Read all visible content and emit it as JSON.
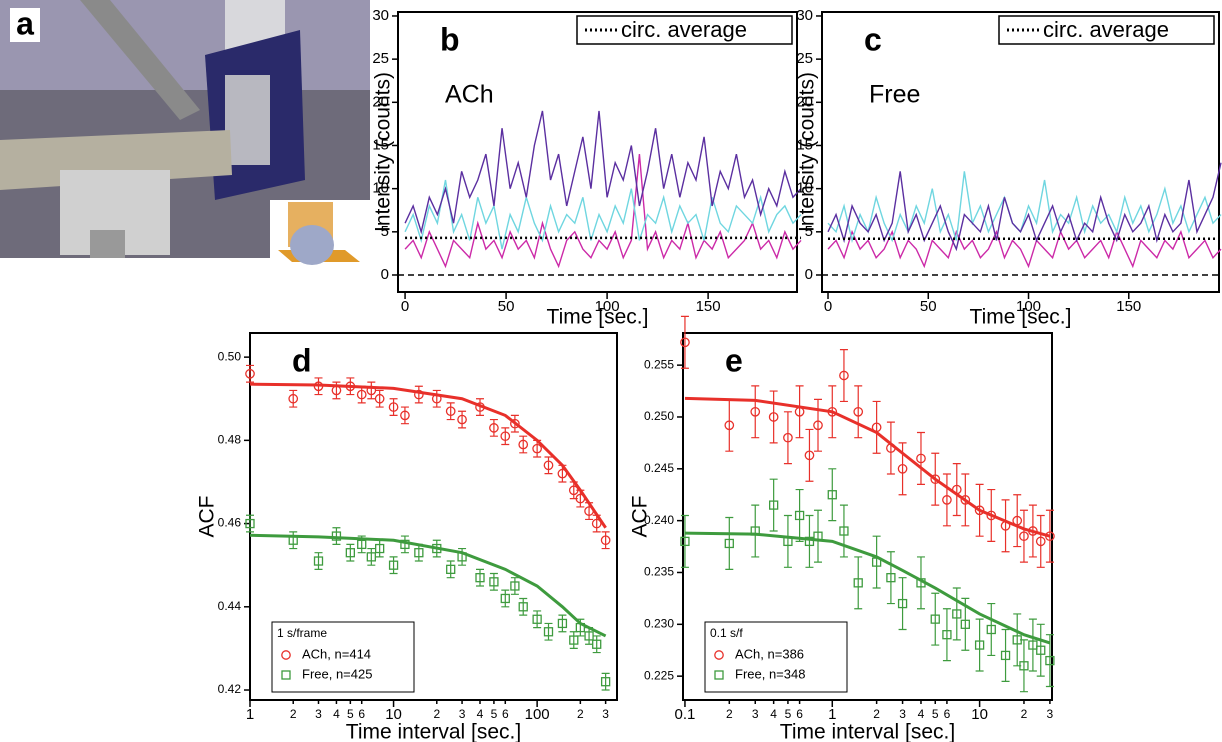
{
  "panel_a": {
    "label": "a"
  },
  "chart_data": [
    {
      "type": "line",
      "panel_label": "b",
      "annotation": "ACh",
      "annotation_color": "#e8302a",
      "xlabel": "Time [sec.]",
      "ylabel": "Intensity (counts)",
      "xlim": [
        -3.5,
        194
      ],
      "ylim": [
        -1.97,
        30.46
      ],
      "xticks": [
        0,
        50,
        100,
        150
      ],
      "yticks": [
        0,
        5,
        10,
        15,
        20,
        25,
        30
      ],
      "reference_line": 0,
      "x": [
        0,
        4,
        8,
        12,
        16,
        20,
        24,
        28,
        32,
        36,
        40,
        44,
        48,
        52,
        56,
        60,
        64,
        68,
        72,
        76,
        80,
        84,
        88,
        92,
        96,
        100,
        104,
        108,
        112,
        116,
        120,
        124,
        128,
        132,
        136,
        140,
        144,
        148,
        152,
        156,
        160,
        164,
        168,
        172,
        176,
        180,
        184,
        188,
        192,
        196
      ],
      "series": [
        {
          "color": "#cc2aa8",
          "values": [
            3,
            4,
            2,
            5,
            3,
            1,
            4,
            3,
            2,
            6,
            3,
            4,
            2,
            5,
            3,
            4,
            2,
            6,
            3,
            1,
            4,
            5,
            3,
            2,
            4,
            3,
            5,
            2,
            4,
            14,
            3,
            5,
            2,
            4,
            3,
            6,
            2,
            4,
            3,
            5,
            2,
            3,
            4,
            6,
            3,
            4,
            2,
            5,
            3,
            4
          ]
        },
        {
          "color": "#6fd6e0",
          "values": [
            5,
            7,
            4,
            8,
            6,
            11,
            5,
            7,
            4,
            9,
            6,
            8,
            3,
            7,
            5,
            9,
            6,
            4,
            8,
            5,
            7,
            6,
            9,
            4,
            7,
            5,
            8,
            6,
            10,
            4,
            7,
            6,
            9,
            5,
            8,
            6,
            7,
            4,
            9,
            6,
            5,
            8,
            7,
            6,
            9,
            5,
            7,
            8,
            6,
            7
          ]
        },
        {
          "color": "#5b2fa0",
          "values": [
            6,
            8,
            5,
            9,
            7,
            10,
            6,
            12,
            9,
            11,
            14,
            8,
            17,
            10,
            13,
            9,
            15,
            19,
            11,
            14,
            8,
            12,
            16,
            10,
            19,
            9,
            13,
            11,
            15,
            8,
            12,
            17,
            10,
            14,
            9,
            13,
            11,
            16,
            8,
            12,
            10,
            14,
            9,
            11,
            7,
            10,
            8,
            12,
            9,
            10
          ]
        },
        {
          "name": "circ. average",
          "color": "#000000",
          "dotted": true,
          "x": [
            0,
            196
          ],
          "values": [
            4.3,
            4.3
          ]
        }
      ]
    },
    {
      "type": "line",
      "panel_label": "c",
      "annotation": "Free",
      "annotation_color": "#3e9b3e",
      "xlabel": "Time [sec.]",
      "ylabel": "Intensity (counts)",
      "xlim": [
        -3,
        195
      ],
      "ylim": [
        -1.97,
        30.46
      ],
      "xticks": [
        0,
        50,
        100,
        150
      ],
      "yticks": [
        0,
        5,
        10,
        15,
        20,
        25,
        30
      ],
      "reference_line": 0,
      "x": [
        0,
        4,
        8,
        12,
        16,
        20,
        24,
        28,
        32,
        36,
        40,
        44,
        48,
        52,
        56,
        60,
        64,
        68,
        72,
        76,
        80,
        84,
        88,
        92,
        96,
        100,
        104,
        108,
        112,
        116,
        120,
        124,
        128,
        132,
        136,
        140,
        144,
        148,
        152,
        156,
        160,
        164,
        168,
        172,
        176,
        180,
        184,
        188,
        192,
        196
      ],
      "series": [
        {
          "color": "#cc2aa8",
          "values": [
            3,
            4,
            2,
            5,
            3,
            4,
            2,
            3,
            5,
            2,
            4,
            3,
            1,
            4,
            3,
            2,
            5,
            3,
            4,
            2,
            3,
            5,
            2,
            4,
            3,
            1,
            4,
            3,
            2,
            5,
            3,
            4,
            2,
            3,
            4,
            2,
            5,
            3,
            1,
            4,
            3,
            2,
            4,
            3,
            5,
            2,
            3,
            4,
            2,
            3
          ]
        },
        {
          "color": "#6fd6e0",
          "values": [
            6,
            5,
            8,
            4,
            7,
            5,
            9,
            6,
            4,
            7,
            5,
            8,
            6,
            10,
            5,
            7,
            4,
            12,
            6,
            8,
            5,
            7,
            9,
            6,
            5,
            8,
            6,
            11,
            5,
            7,
            6,
            9,
            5,
            8,
            6,
            7,
            5,
            9,
            6,
            8,
            5,
            7,
            10,
            6,
            8,
            5,
            7,
            9,
            6,
            7
          ]
        },
        {
          "color": "#5b2fa0",
          "values": [
            5,
            7,
            4,
            8,
            6,
            5,
            7,
            4,
            6,
            12,
            5,
            7,
            4,
            6,
            8,
            5,
            3,
            7,
            6,
            5,
            8,
            4,
            9,
            6,
            5,
            7,
            4,
            6,
            8,
            5,
            7,
            4,
            6,
            5,
            9,
            6,
            4,
            7,
            5,
            6,
            8,
            4,
            7,
            5,
            6,
            11,
            5,
            7,
            9,
            13
          ]
        },
        {
          "name": "circ. average",
          "color": "#000000",
          "dotted": true,
          "x": [
            0,
            196
          ],
          "values": [
            4.2,
            4.2
          ]
        }
      ]
    },
    {
      "type": "scatter",
      "panel_label": "d",
      "xlabel": "Time interval [sec.]",
      "ylabel": "ACF",
      "log_x": true,
      "legend_title": "1 s/frame",
      "xlim": [
        1,
        360
      ],
      "ylim": [
        0.4176,
        0.5058
      ],
      "xticks": [
        1,
        2,
        3,
        4,
        5,
        6,
        10,
        {
          "value": 20,
          "label": "2"
        },
        {
          "value": 30,
          "label": "3"
        },
        {
          "value": 40,
          "label": "4"
        },
        {
          "value": 50,
          "label": "5"
        },
        {
          "value": 60,
          "label": "6"
        },
        100,
        {
          "value": 200,
          "label": "2"
        },
        {
          "value": 300,
          "label": "3"
        }
      ],
      "yticks": [
        0.42,
        0.44,
        0.46,
        0.48,
        {
          "value": 0.5,
          "label": "0.50"
        }
      ],
      "x": [
        1,
        2,
        3,
        4,
        5,
        6,
        7,
        8,
        10,
        12,
        15,
        20,
        25,
        30,
        40,
        50,
        60,
        70,
        80,
        100,
        120,
        150,
        180,
        200,
        230,
        260,
        300
      ],
      "series": [
        {
          "name": "ACh, n=414",
          "color": "#e8302a",
          "marker": "circle",
          "values": [
            0.496,
            0.49,
            0.493,
            0.492,
            0.493,
            0.491,
            0.492,
            0.49,
            0.488,
            0.486,
            0.491,
            0.49,
            0.487,
            0.485,
            0.488,
            0.483,
            0.481,
            0.484,
            0.479,
            0.478,
            0.474,
            0.472,
            0.468,
            0.466,
            0.463,
            0.46,
            0.456
          ],
          "errors": [
            0.002,
            0.002,
            0.002,
            0.002,
            0.002,
            0.002,
            0.002,
            0.002,
            0.002,
            0.002,
            0.002,
            0.002,
            0.002,
            0.002,
            0.002,
            0.002,
            0.002,
            0.002,
            0.002,
            0.002,
            0.002,
            0.002,
            0.002,
            0.002,
            0.002,
            0.002,
            0.002
          ]
        },
        {
          "name": "Free, n=425",
          "color": "#3e9b3e",
          "marker": "square",
          "values": [
            0.46,
            0.456,
            0.451,
            0.457,
            0.453,
            0.455,
            0.452,
            0.454,
            0.45,
            0.455,
            0.453,
            0.454,
            0.449,
            0.452,
            0.447,
            0.446,
            0.442,
            0.445,
            0.44,
            0.437,
            0.434,
            0.436,
            0.432,
            0.435,
            0.433,
            0.431,
            0.422
          ],
          "errors": [
            0.002,
            0.002,
            0.002,
            0.002,
            0.002,
            0.002,
            0.002,
            0.002,
            0.002,
            0.002,
            0.002,
            0.002,
            0.002,
            0.002,
            0.002,
            0.002,
            0.002,
            0.002,
            0.002,
            0.002,
            0.002,
            0.002,
            0.002,
            0.002,
            0.002,
            0.002,
            0.002
          ]
        },
        {
          "color": "#e8302a",
          "fit": true,
          "x": [
            1,
            3,
            10,
            30,
            60,
            100,
            150,
            200,
            300
          ],
          "values": [
            0.4935,
            0.4933,
            0.4925,
            0.49,
            0.486,
            0.48,
            0.474,
            0.468,
            0.459
          ]
        },
        {
          "color": "#3e9b3e",
          "fit": true,
          "x": [
            1,
            3,
            10,
            30,
            60,
            100,
            150,
            200,
            300
          ],
          "values": [
            0.4572,
            0.4568,
            0.456,
            0.453,
            0.449,
            0.445,
            0.44,
            0.436,
            0.433
          ]
        }
      ]
    },
    {
      "type": "scatter",
      "panel_label": "e",
      "xlabel": "Time interval [sec.]",
      "ylabel": "ACF",
      "log_x": true,
      "legend_title": "0.1 s/f",
      "xlim": [
        0.097,
        31
      ],
      "ylim": [
        0.2227,
        0.2581
      ],
      "xticks": [
        0.1,
        {
          "value": 0.2,
          "label": "2"
        },
        {
          "value": 0.3,
          "label": "3"
        },
        {
          "value": 0.4,
          "label": "4"
        },
        {
          "value": 0.5,
          "label": "5"
        },
        {
          "value": 0.6,
          "label": "6"
        },
        1,
        2,
        3,
        4,
        5,
        6,
        10,
        {
          "value": 20,
          "label": "2"
        },
        {
          "value": 30,
          "label": "3"
        }
      ],
      "yticks": [
        0.225,
        {
          "value": 0.23,
          "label": "0.230"
        },
        0.235,
        {
          "value": 0.24,
          "label": "0.240"
        },
        0.245,
        {
          "value": 0.25,
          "label": "0.250"
        },
        0.255
      ],
      "x": [
        0.1,
        0.2,
        0.3,
        0.4,
        0.5,
        0.6,
        0.7,
        0.8,
        1,
        1.2,
        1.5,
        2,
        2.5,
        3,
        4,
        5,
        6,
        7,
        8,
        10,
        12,
        15,
        18,
        20,
        23,
        26,
        30
      ],
      "series": [
        {
          "name": "ACh, n=386",
          "color": "#e8302a",
          "marker": "circle",
          "values": [
            0.2572,
            0.2492,
            0.2505,
            0.25,
            0.248,
            0.2505,
            0.2463,
            0.2492,
            0.2505,
            0.254,
            0.2505,
            0.249,
            0.247,
            0.245,
            0.246,
            0.244,
            0.242,
            0.243,
            0.242,
            0.241,
            0.2405,
            0.2395,
            0.24,
            0.2385,
            0.239,
            0.238,
            0.2385
          ],
          "errors": [
            0.0025,
            0.0025,
            0.0025,
            0.0025,
            0.0025,
            0.0025,
            0.0025,
            0.0025,
            0.0025,
            0.0025,
            0.0025,
            0.0025,
            0.0025,
            0.0025,
            0.0025,
            0.0025,
            0.0025,
            0.0025,
            0.0025,
            0.0025,
            0.0025,
            0.0025,
            0.0025,
            0.0025,
            0.0025,
            0.0025,
            0.0025
          ]
        },
        {
          "name": "Free, n=348",
          "color": "#3e9b3e",
          "marker": "square",
          "values": [
            0.238,
            0.2378,
            0.239,
            0.2415,
            0.238,
            0.2405,
            0.238,
            0.2385,
            0.2425,
            0.239,
            0.234,
            0.236,
            0.2345,
            0.232,
            0.234,
            0.2305,
            0.229,
            0.231,
            0.23,
            0.228,
            0.2295,
            0.227,
            0.2285,
            0.226,
            0.228,
            0.2275,
            0.2265
          ],
          "errors": [
            0.0025,
            0.0025,
            0.0025,
            0.0025,
            0.0025,
            0.0025,
            0.0025,
            0.0025,
            0.0025,
            0.0025,
            0.0025,
            0.0025,
            0.0025,
            0.0025,
            0.0025,
            0.0025,
            0.0025,
            0.0025,
            0.0025,
            0.0025,
            0.0025,
            0.0025,
            0.0025,
            0.0025,
            0.0025,
            0.0025,
            0.0025
          ]
        },
        {
          "color": "#e8302a",
          "fit": true,
          "x": [
            0.1,
            0.3,
            1,
            2,
            3,
            5,
            10,
            20,
            30
          ],
          "values": [
            0.2518,
            0.2516,
            0.2505,
            0.2485,
            0.2465,
            0.244,
            0.241,
            0.2392,
            0.2385
          ]
        },
        {
          "color": "#3e9b3e",
          "fit": true,
          "x": [
            0.1,
            0.3,
            1,
            2,
            3,
            5,
            10,
            20,
            30
          ],
          "values": [
            0.2388,
            0.2387,
            0.238,
            0.2365,
            0.2352,
            0.2335,
            0.231,
            0.229,
            0.2282
          ]
        }
      ]
    }
  ]
}
